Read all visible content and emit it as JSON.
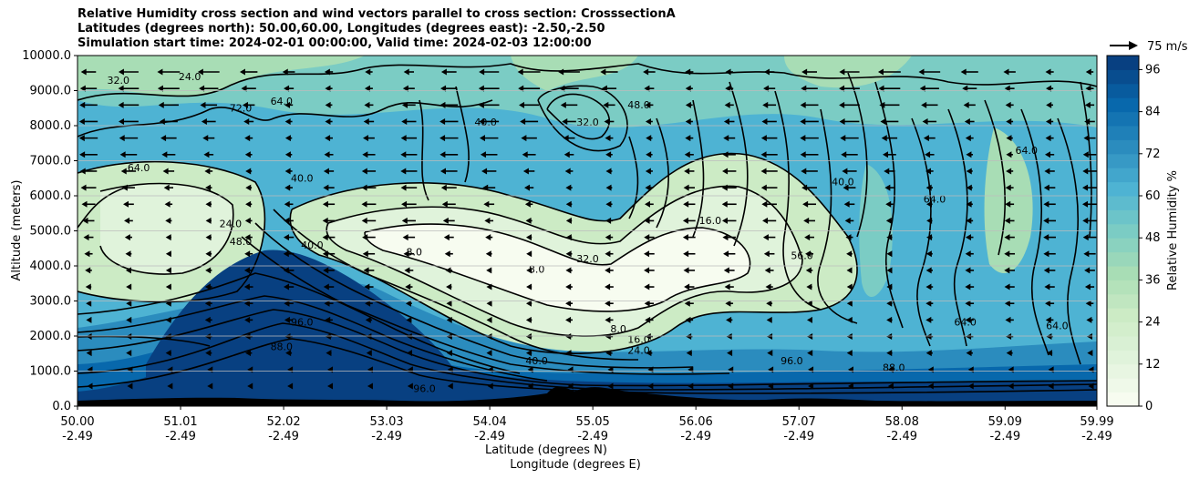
{
  "title": {
    "line1": "Relative Humidity cross section and wind vectors parallel to cross section: CrosssectionA",
    "line2": "Latitudes (degrees north): 50.00,60.00, Longitudes (degrees east): -2.50,-2.50",
    "line3": "Simulation start time: 2024-02-01 00:00:00, Valid time: 2024-02-03 12:00:00"
  },
  "chart_data": {
    "type": "heatmap",
    "subtype": "filled contour cross section with line contours and wind vectors",
    "ylabel": "Altitude (meters)",
    "xlabel_line1": "Latitude (degrees N)",
    "xlabel_line2": "Longitude (degrees E)",
    "ylim": [
      0,
      10000
    ],
    "yticks": [
      "0.0",
      "1000.0",
      "2000.0",
      "3000.0",
      "4000.0",
      "5000.0",
      "6000.0",
      "7000.0",
      "8000.0",
      "9000.0",
      "10000.0"
    ],
    "xlim": [
      50.0,
      59.99
    ],
    "xticks_lat": [
      "50.00",
      "51.01",
      "52.02",
      "53.03",
      "54.04",
      "55.05",
      "56.06",
      "57.07",
      "58.08",
      "59.09",
      "59.99"
    ],
    "xticks_lon": [
      "-2.49",
      "-2.49",
      "-2.49",
      "-2.49",
      "-2.49",
      "-2.49",
      "-2.49",
      "-2.49",
      "-2.49",
      "-2.49",
      "-2.49"
    ],
    "grid": "horizontal",
    "colorbar": {
      "label": "Relative Humidity %",
      "ticks": [
        "0",
        "12",
        "24",
        "36",
        "48",
        "60",
        "72",
        "84",
        "96"
      ],
      "range": [
        0,
        100
      ],
      "colormap": [
        "#f7fcf0",
        "#e0f3db",
        "#ccebc5",
        "#a8ddb5",
        "#7bccc4",
        "#4eb3d3",
        "#2b8cbe",
        "#0868ac",
        "#084081"
      ]
    },
    "wind_key": {
      "label": "75 m/s"
    },
    "contour_levels": [
      "8.0",
      "16.0",
      "24.0",
      "32.0",
      "40.0",
      "48.0",
      "56.0",
      "64.0",
      "72.0",
      "80.0",
      "88.0",
      "96.0"
    ],
    "contour_label_samples": [
      {
        "lat": 50.4,
        "alt": 9200,
        "text": "32.0"
      },
      {
        "lat": 51.1,
        "alt": 9300,
        "text": "24.0"
      },
      {
        "lat": 51.6,
        "alt": 8400,
        "text": "72.0"
      },
      {
        "lat": 52.0,
        "alt": 8600,
        "text": "64.0"
      },
      {
        "lat": 50.6,
        "alt": 6700,
        "text": "64.0"
      },
      {
        "lat": 52.2,
        "alt": 6400,
        "text": "40.0"
      },
      {
        "lat": 51.5,
        "alt": 5100,
        "text": "24.0"
      },
      {
        "lat": 51.6,
        "alt": 4600,
        "text": "48.0"
      },
      {
        "lat": 52.3,
        "alt": 4500,
        "text": "40.0"
      },
      {
        "lat": 53.3,
        "alt": 4300,
        "text": "8.0"
      },
      {
        "lat": 54.5,
        "alt": 3800,
        "text": "8.0"
      },
      {
        "lat": 55.0,
        "alt": 4100,
        "text": "32.0"
      },
      {
        "lat": 54.0,
        "alt": 8000,
        "text": "40.0"
      },
      {
        "lat": 55.0,
        "alt": 8000,
        "text": "32.0"
      },
      {
        "lat": 55.5,
        "alt": 8500,
        "text": "48.0"
      },
      {
        "lat": 56.2,
        "alt": 5200,
        "text": "16.0"
      },
      {
        "lat": 57.1,
        "alt": 4200,
        "text": "56.0"
      },
      {
        "lat": 57.5,
        "alt": 6300,
        "text": "40.0"
      },
      {
        "lat": 58.4,
        "alt": 5800,
        "text": "64.0"
      },
      {
        "lat": 59.3,
        "alt": 7200,
        "text": "64.0"
      },
      {
        "lat": 55.3,
        "alt": 2100,
        "text": "8.0"
      },
      {
        "lat": 55.5,
        "alt": 1800,
        "text": "16.0"
      },
      {
        "lat": 55.5,
        "alt": 1500,
        "text": "24.0"
      },
      {
        "lat": 54.5,
        "alt": 1200,
        "text": "40.0"
      },
      {
        "lat": 52.2,
        "alt": 2300,
        "text": "96.0"
      },
      {
        "lat": 52.0,
        "alt": 1600,
        "text": "88.0"
      },
      {
        "lat": 53.4,
        "alt": 400,
        "text": "96.0"
      },
      {
        "lat": 57.0,
        "alt": 1200,
        "text": "96.0"
      },
      {
        "lat": 58.0,
        "alt": 1000,
        "text": "88.0"
      },
      {
        "lat": 58.7,
        "alt": 2300,
        "text": "64.0"
      },
      {
        "lat": 59.6,
        "alt": 2200,
        "text": "64.0"
      }
    ]
  }
}
